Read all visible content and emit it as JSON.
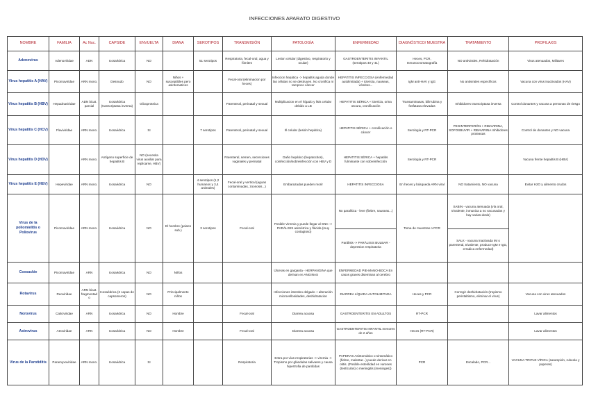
{
  "title": "INFECCIONES APARATO DIGESTIVO",
  "table": {
    "headers": [
      "NOMBRE",
      "FAMILIA",
      "Ac Nuc.",
      "CAPSIDE",
      "ENVUELTA",
      "DIANA",
      "SEROTIPOS",
      "TRANSMISIÓN",
      "PATOLOGÍA",
      "ENFERMEDAD",
      "DIAGNÓSTICO/ MUESTRA",
      "TRATAMIENTO",
      "PROFILAXIS"
    ],
    "rows": [
      [
        "Adenovirus",
        "Adenoviridae",
        "ADN",
        "Icosaédrica",
        "NO",
        "",
        "51 serotipos",
        "Respiratoria, fecal-oral, agua y fómites",
        "Lesion celular (digestivo, respiratorio y ocular)",
        "GASTROENTERITIS INFANTIL (serotipos 40 y 41)",
        "Heces, PCR, Inmunocromatografía",
        "NO antivirales, Rehidratación",
        "Virus atenuados, Militares"
      ],
      [
        "Virus hepatitis A (HAV)",
        "Picornaviridae",
        "ARN mono.",
        "Desnudo",
        "NO",
        "Niños + susceptibles pero asintomaticos",
        "",
        "Fecal-oral (eliminacion por heces)",
        "Infeccion hepática -> hepatitis aguda donde las células no se destruyen. No cronifica ni tampoco cáncer",
        "HEPATITIS INFECCIOSA (enfermedad autolimitada) + ictericia, nauseas, vómitos...",
        "IgM anti-HAV y IgG",
        "No antivirales específicos",
        "Vacuna con virus inactivados (HAV)"
      ],
      [
        "Virus hepatitis B (HBV)",
        "Hepadnaviridae",
        "ADN bicat. parcial",
        "Icosaédrica (transcriptasa inversa)",
        "Glicoproteica",
        "",
        "",
        "Parenteral, perinatal y sexual",
        "Multiplicacion en el hígado y lisis celular debido a LB",
        "HEPATITIS SÉRICA + ictericia, orina oscura, cronificación",
        "Transaminasas, bilirrubina y fosfatasa elevadas",
        "Inhibidores transcriptasa inversa",
        "Control donantes y vacuna a personas de riesgo"
      ],
      [
        "Virus hepatitis C (HCV)",
        "Flaviviridae",
        "ARN mono.",
        "Icosaédrica",
        "SI",
        "",
        "7 serotipos",
        "Parenteral, perinatal y sexual",
        "Ill celular (lesión hepática)",
        "HEPATITIS SÉRICA + cronificación o cáncer",
        "Serología y RT-PCR",
        "PEGINTERFERÓN + RIBAVIRINA, SOFOSBUVIR + RIBAVIRINA Inhibidores proteasas",
        "Control de donantes y NO vacuna"
      ],
      [
        "Virus hepatitis D (HDV)",
        "",
        "ARN mono.",
        "Antígeno superficie de hepatitis B",
        "NO (necesita virus auxiliar para replicarse, HBV)",
        "",
        "",
        "Parenteral, semen, secreciones vaginales y perinatal",
        "Daño hepático (hepatocitos), coinfección/sobreinfección con HBV y D",
        "HEPATITIS SÉRICA + hepatitis fulminante con sobreinfección",
        "Serología y RT-PCR",
        "",
        "Vacuna frente hepatitis B (HBV)"
      ],
      [
        "Virus hepatitis E (HEV)",
        "Hepeviridae",
        "ARN mono.",
        "Icosaédrica",
        "NO",
        "",
        "4 serotipos (1,2 humanos y 3,4 animales)",
        "Fecal-oral y vertical (aguas contaminadas, zoonosis...)",
        "Embarazadas pueden morir",
        "HEPATITIS INFECCIOSA",
        "En heces y búsqueda ARN viral",
        "NO tratamiento, NO vacuna",
        "Evitar H2O y alimento crudos"
      ],
      [
        "Virus de la poliomielitis o Poliovirus",
        "Picornaviridae",
        "ARN mono.",
        "Icosaédrica",
        "NO",
        "El hombre (paises sub.)",
        "3 serotipos",
        "Fecal-oral",
        "Posible Viremia y puede llegar al SNC -> PARÁLISIS asimétrica y flácida (muy contagioso)",
        [
          "No paralítica - leve (fiebre, nauseas...)",
          "Parálisis -> PARÁLISIS BULBAR - depresion respiratoria"
        ],
        "Toma de muestras o PCR",
        [
          "SABIN - vacuna atenuada (vía oral, trivalente, inmuniza a no vacunados y hay varias dosis)",
          "SALK - vacuna inactivada IM o parenteral, trivalente, produce IgM e IgG, erradica enfermedad)"
        ],
        ""
      ],
      [
        "Coxsackie",
        "Picornaviridae",
        "ARN",
        "Icosaédrica",
        "NO",
        "Niños",
        "",
        "",
        "Úlceras en garganta - HERPANGINA que derivan en ANGINAS",
        "ENFERMEDAD PIE-MANO-BOCA En casos graves diseminan al cerebro",
        "",
        "",
        ""
      ],
      [
        "Rotavirus",
        "Reoviridae",
        "ARN bicat. fragmentado",
        "Icosaédrica (3 capas de capsomeros)",
        "NO",
        "Principalmente niños",
        "",
        "",
        "Infecciones intestino delgado + alteración microvellosidades, deshidratacion",
        "DIARREA LÍQUIDA AUTOLIMITADA",
        "Heces y PCR",
        "Corregir deshidratación (tropismo peristaltismo, eliminar el virus)",
        "Vacuna con virus atenuados"
      ],
      [
        "Norovirus",
        "Caliciviridae",
        "ARN",
        "Icosaédrica",
        "NO",
        "Hombre",
        "",
        "Fecal-oral",
        "Diarrea acuosa",
        "GASTROENTERITIS EN ADULTOS",
        "RT-PCR",
        "",
        "Lavar alimentos"
      ],
      [
        "Astrovirus",
        "Atroviridae",
        "ARN",
        "Icosaédrica",
        "NO",
        "Hombre",
        "",
        "Fecal-oral",
        "Diarrea acuosa",
        "GASTROENTERITIS INFANTIL menores de 2 años",
        "Heces (RT-PCR)",
        "",
        "Lavar alimentos"
      ],
      [
        "Virus de la Parotiditis",
        "Paramyxoviridae",
        "ARN mono.",
        "Icosaédrica",
        "SI",
        "",
        "",
        "Respiratoria",
        "Entra por vías respiratorias -> viremia -> Tropismo por glándulas salivares y causa hipertrofia de parótidas",
        "PAPERAS Asintomático o sintomático (fiebre, malestar...) puede derivar en otitis. (Posible esterilidad en varones (testículos) o meningitis (meninges))",
        "PCR",
        "Escalado, PCR...",
        "VACUNA TRIPLE VÍRICA (sarampión, rubeola y paperas)"
      ]
    ]
  }
}
